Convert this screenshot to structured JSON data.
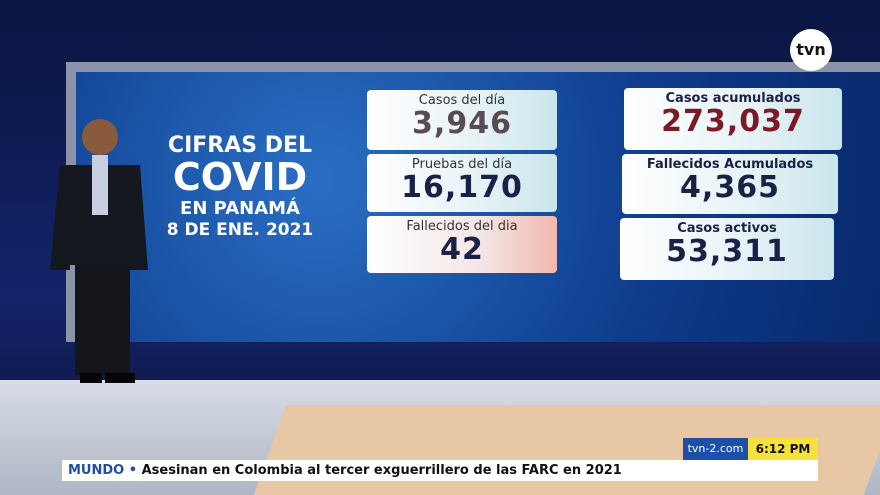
{
  "logo": "tvn",
  "screen": {
    "title": [
      "CIFRAS DEL",
      "COVID",
      "EN PANAMÁ",
      "8 DE ENE. 2021"
    ],
    "cards": [
      {
        "label": "Casos del día",
        "value": "3,946"
      },
      {
        "label": "Pruebas del día",
        "value": "16,170"
      },
      {
        "label": "Fallecidos del dia",
        "value": "42"
      },
      {
        "label": "Casos acumulados",
        "value": "273,037"
      },
      {
        "label": "Fallecidos Acumulados",
        "value": "4,365"
      },
      {
        "label": "Casos activos",
        "value": "53,311"
      }
    ]
  },
  "ticker": {
    "section": "MUNDO",
    "headline": "Asesinan en Colombia al tercer exguerrillero de las FARC en 2021",
    "site": "tvn-2.com",
    "time": "6:12 PM"
  }
}
